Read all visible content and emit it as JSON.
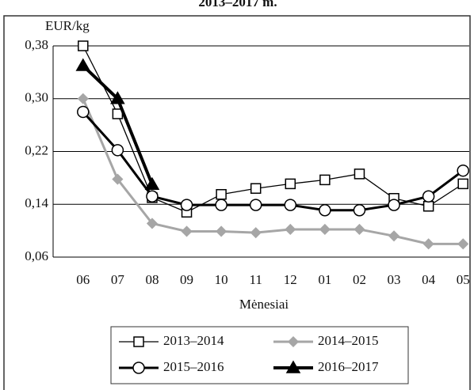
{
  "chart_data": {
    "type": "line",
    "title": "2013–2017 m.",
    "ylabel": "EUR/kg",
    "xlabel": "Mėnesiai",
    "categories": [
      "06",
      "07",
      "08",
      "09",
      "10",
      "11",
      "12",
      "01",
      "02",
      "03",
      "04",
      "05"
    ],
    "ylim": [
      0.06,
      0.38
    ],
    "yticks": [
      {
        "value": 0.06,
        "label": "0,06"
      },
      {
        "value": 0.14,
        "label": "0,14"
      },
      {
        "value": 0.22,
        "label": "0,22"
      },
      {
        "value": 0.3,
        "label": "0,30"
      },
      {
        "value": 0.38,
        "label": "0,38"
      }
    ],
    "grid": true,
    "series": [
      {
        "name": "2013–2014",
        "color": "#000000",
        "width": 1.3,
        "marker": "square",
        "values": [
          0.38,
          0.277,
          0.15,
          0.128,
          0.155,
          0.164,
          0.171,
          0.177,
          0.186,
          0.149,
          0.137,
          0.171
        ]
      },
      {
        "name": "2014–2015",
        "color": "#a6a6a6",
        "width": 3,
        "marker": "diamond",
        "values": [
          0.3,
          0.178,
          0.111,
          0.099,
          0.099,
          0.097,
          0.102,
          0.102,
          0.102,
          0.092,
          0.08,
          0.08
        ]
      },
      {
        "name": "2015–2016",
        "color": "#000000",
        "width": 3,
        "marker": "circle",
        "values": [
          0.28,
          0.222,
          0.152,
          0.139,
          0.139,
          0.139,
          0.139,
          0.131,
          0.131,
          0.139,
          0.152,
          0.191
        ]
      },
      {
        "name": "2016–2017",
        "color": "#000000",
        "width": 4,
        "marker": "triangle",
        "values": [
          0.35,
          0.3,
          0.17,
          null,
          null,
          null,
          null,
          null,
          null,
          null,
          null,
          null
        ]
      }
    ]
  }
}
